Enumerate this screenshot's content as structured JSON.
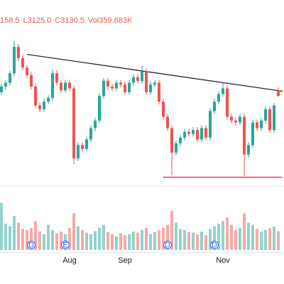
{
  "chart_data": {
    "type": "candlestick",
    "header_labels": [
      "158.5",
      "L3125.0",
      "C3130.5",
      "Vol359.683K"
    ],
    "categories": [
      null,
      null,
      null,
      null,
      null,
      null,
      null,
      null,
      null,
      null,
      null,
      null,
      null,
      null,
      null,
      null,
      "Aug",
      null,
      null,
      null,
      null,
      null,
      null,
      null,
      null,
      null,
      null,
      null,
      null,
      "Sep",
      null,
      null,
      null,
      null,
      null,
      null,
      null,
      null,
      null,
      null,
      null,
      null,
      null,
      null,
      null,
      null,
      null,
      null,
      null,
      null,
      null,
      null,
      "Nov",
      null,
      null,
      null,
      null,
      null,
      null,
      null,
      null,
      null,
      null,
      null,
      null,
      null
    ],
    "open": [
      3150,
      3180,
      3200,
      3250,
      3390,
      3330,
      3280,
      3240,
      3180,
      3080,
      3060,
      3100,
      3120,
      3250,
      3200,
      3160,
      3200,
      3170,
      2800,
      2870,
      2850,
      2900,
      2960,
      3000,
      3130,
      3210,
      3180,
      3170,
      3200,
      3190,
      3150,
      3200,
      3230,
      3210,
      3260,
      3150,
      3190,
      3200,
      3100,
      3020,
      2960,
      2830,
      2880,
      2910,
      2940,
      2930,
      2950,
      2900,
      2960,
      2910,
      3050,
      3100,
      3140,
      3170,
      3020,
      3000,
      2990,
      3020,
      2820,
      2870,
      2990,
      2960,
      3000,
      3060,
      2950,
      3158.5
    ],
    "high": [
      3195,
      3215,
      3265,
      3420,
      3405,
      3345,
      3295,
      3255,
      3195,
      3095,
      3115,
      3135,
      3270,
      3265,
      3215,
      3215,
      3215,
      3185,
      2885,
      2885,
      2915,
      2975,
      3015,
      3145,
      3225,
      3225,
      3195,
      3215,
      3215,
      3205,
      3215,
      3245,
      3245,
      3290,
      3275,
      3205,
      3215,
      3215,
      3115,
      3035,
      2975,
      2895,
      2925,
      2955,
      2955,
      2965,
      2965,
      2975,
      2975,
      3065,
      3115,
      3155,
      3200,
      3185,
      3035,
      3015,
      3035,
      3035,
      2885,
      3005,
      3005,
      3015,
      3075,
      3075,
      3095,
      3175
    ],
    "low": [
      3135,
      3165,
      3185,
      3235,
      3315,
      3265,
      3225,
      3165,
      3065,
      3045,
      3045,
      3085,
      3105,
      3185,
      3145,
      3145,
      3155,
      2770,
      2785,
      2835,
      2835,
      2885,
      2945,
      2985,
      3115,
      3165,
      3155,
      3155,
      3175,
      3135,
      3135,
      3185,
      3195,
      3195,
      3135,
      3135,
      3175,
      3085,
      3005,
      2945,
      2710,
      2815,
      2865,
      2895,
      2915,
      2915,
      2885,
      2885,
      2895,
      2895,
      3035,
      3085,
      3125,
      3005,
      2985,
      2975,
      2975,
      2705,
      2805,
      2855,
      2945,
      2945,
      2985,
      2935,
      2935,
      3125
    ],
    "close": [
      3180,
      3200,
      3250,
      3390,
      3330,
      3280,
      3240,
      3180,
      3080,
      3060,
      3100,
      3120,
      3250,
      3200,
      3160,
      3200,
      3170,
      2800,
      2870,
      2850,
      2900,
      2960,
      3000,
      3130,
      3210,
      3180,
      3170,
      3200,
      3190,
      3150,
      3200,
      3230,
      3210,
      3260,
      3150,
      3190,
      3200,
      3100,
      3020,
      2960,
      2830,
      2880,
      2910,
      2940,
      2930,
      2950,
      2900,
      2960,
      2910,
      3050,
      3100,
      3140,
      3170,
      3020,
      3000,
      2990,
      3020,
      2820,
      2870,
      2990,
      2960,
      3000,
      3060,
      2950,
      3080,
      3130.5
    ],
    "volume": [
      900,
      500,
      450,
      650,
      520,
      400,
      380,
      420,
      550,
      350,
      300,
      480,
      380,
      320,
      350,
      300,
      420,
      700,
      450,
      380,
      330,
      300,
      360,
      420,
      480,
      340,
      300,
      260,
      320,
      280,
      300,
      350,
      330,
      380,
      420,
      300,
      340,
      380,
      420,
      480,
      750,
      520,
      400,
      380,
      340,
      330,
      300,
      350,
      280,
      400,
      450,
      500,
      550,
      620,
      480,
      380,
      420,
      700,
      520,
      480,
      400,
      350,
      380,
      420,
      450,
      359.683
    ],
    "ylim": [
      2650,
      3600
    ],
    "vlim": [
      0,
      950
    ],
    "up_color": "#26a69a",
    "down_color": "#ef5350",
    "trendline": {
      "start_index": 6,
      "start": 3350,
      "end_index": 66,
      "end": 3155,
      "color": "#131722"
    },
    "support": {
      "start_index": 38,
      "end_index": 66,
      "value": 2700,
      "color": "#f23645"
    },
    "events": [
      {
        "index": 7,
        "label": "D"
      },
      {
        "index": 15,
        "label": "E"
      },
      {
        "index": 39,
        "label": "D"
      },
      {
        "index": 50,
        "label": "D"
      }
    ]
  }
}
